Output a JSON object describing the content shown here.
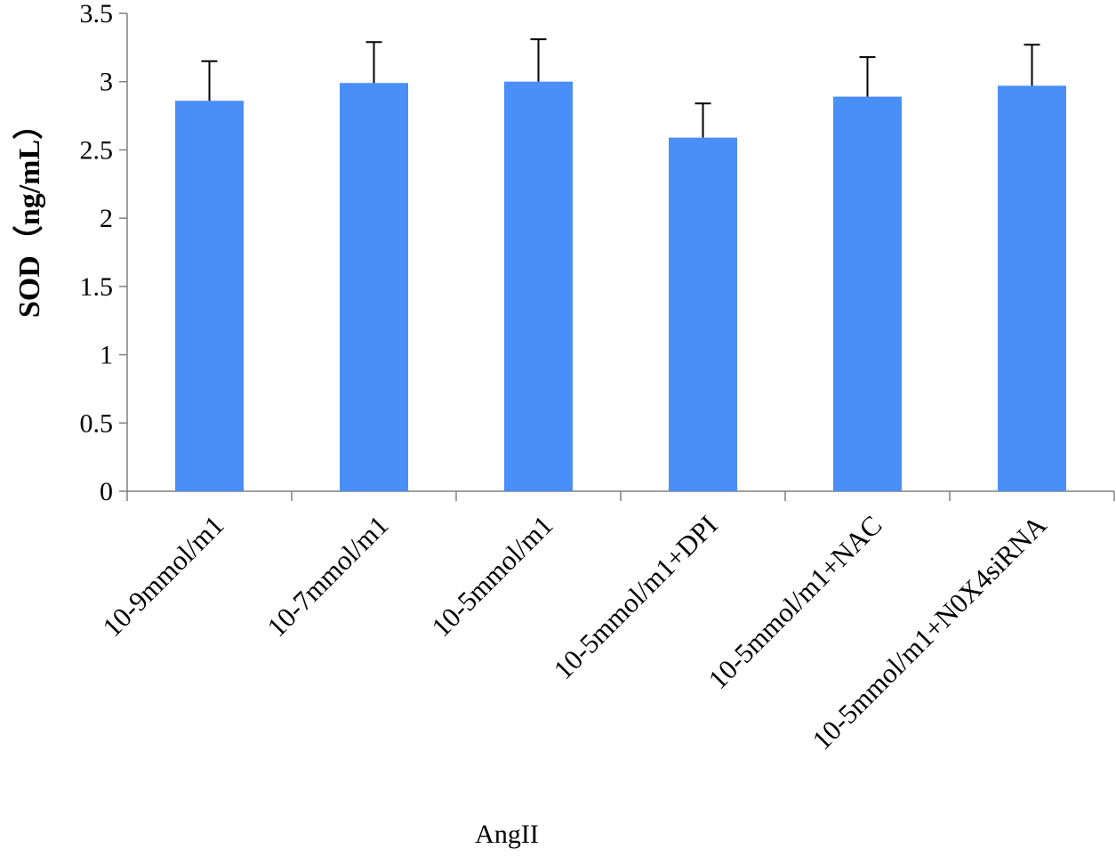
{
  "chart_data": {
    "type": "bar",
    "categories": [
      "10-9mmol/m1",
      "10-7mmol/m1",
      "10-5mmol/m1",
      "10-5mmol/m1+DPI",
      "10-5mmol/m1+NAC",
      "10-5mmol/m1+N0X4siRNA"
    ],
    "series": [
      {
        "values": [
          2.86,
          2.99,
          3.0,
          2.59,
          2.89,
          2.97
        ],
        "errors": [
          0.29,
          0.3,
          0.31,
          0.25,
          0.29,
          0.3
        ],
        "color": "#4A8EF7"
      }
    ],
    "title": "",
    "xlabel": "AngII",
    "ylabel": "SOD（ng/mL）",
    "ylim": [
      0,
      3.5
    ],
    "yticks": [
      0,
      0.5,
      1,
      1.5,
      2,
      2.5,
      3,
      3.5
    ],
    "ytick_labels": [
      "0",
      "0.5",
      "1",
      "1.5",
      "2",
      "2.5",
      "3",
      "3.5"
    ],
    "grid": false,
    "legend": "none",
    "error_bars": "upper"
  }
}
